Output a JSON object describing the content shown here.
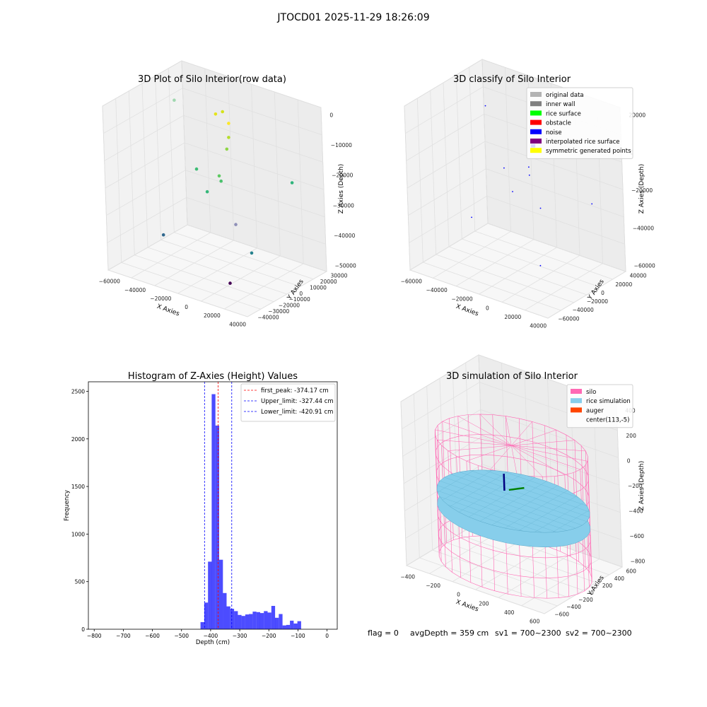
{
  "figure": {
    "suptitle": "JTOCD01 2025-11-29 18:26:09",
    "footer": {
      "flag": "flag = 0",
      "avg_depth": "avgDepth = 359 cm",
      "sv1": "sv1 = 700~2300",
      "sv2": "sv2 = 700~2300"
    }
  },
  "chart_data": [
    {
      "type": "scatter",
      "projection": "3d",
      "title": "3D Plot of Silo Interior(row data)",
      "xlabel": "X Axies",
      "ylabel": "Y Axies",
      "zlabel": "Z Axies (Depth)",
      "xticks": [
        "−60000",
        "−40000",
        "−20000",
        "0",
        "20000",
        "40000"
      ],
      "yticks": [
        "−40000",
        "−30000",
        "−20000",
        "−10000",
        "0",
        "10000",
        "20000",
        "30000"
      ],
      "zticks": [
        "−50000",
        "−40000",
        "−30000",
        "−20000",
        "−10000",
        "0"
      ],
      "xlim": [
        -65000,
        45000
      ],
      "ylim": [
        -45000,
        35000
      ],
      "zlim": [
        -55000,
        2000
      ],
      "colormap": "viridis",
      "grid": true,
      "points": [
        {
          "x": -5000,
          "y": 5000,
          "z": -5000,
          "color": "#fde725"
        },
        {
          "x": -8000,
          "y": 3000,
          "z": -1000,
          "color": "#d4e21a"
        },
        {
          "x": -12000,
          "y": 1000,
          "z": -2000,
          "color": "#e5e419"
        },
        {
          "x": -3000,
          "y": 2000,
          "z": -9000,
          "color": "#b5de2b"
        },
        {
          "x": -4000,
          "y": 1000,
          "z": -13000,
          "color": "#8ed645"
        },
        {
          "x": -60000,
          "y": 20000,
          "z": -8000,
          "color": "#a0d8b0"
        },
        {
          "x": -10000,
          "y": 0,
          "z": -23000,
          "color": "#5ec962"
        },
        {
          "x": -7000,
          "y": -2000,
          "z": -24000,
          "color": "#4ac16d"
        },
        {
          "x": -40000,
          "y": 15000,
          "z": -28000,
          "color": "#3dbc74"
        },
        {
          "x": -20000,
          "y": 0,
          "z": -30000,
          "color": "#35b779"
        },
        {
          "x": 40000,
          "y": 10000,
          "z": -20000,
          "color": "#2fb47c"
        },
        {
          "x": 10000,
          "y": -10000,
          "z": -35000,
          "color": "#8f90b8"
        },
        {
          "x": -40000,
          "y": -20000,
          "z": -44000,
          "color": "#31688e"
        },
        {
          "x": 30000,
          "y": -20000,
          "z": -40000,
          "color": "#26828e"
        },
        {
          "x": 20000,
          "y": -30000,
          "z": -50000,
          "color": "#440154"
        }
      ]
    },
    {
      "type": "scatter",
      "projection": "3d",
      "title": "3D classify of Silo Interior",
      "xlabel": "X Axies",
      "ylabel": "Y Axies",
      "zlabel": "Z Axies (Depth)",
      "xticks": [
        "−60000",
        "−40000",
        "−20000",
        "0",
        "20000",
        "40000"
      ],
      "yticks": [
        "−60000",
        "−40000",
        "−20000",
        "0",
        "20000",
        "40000"
      ],
      "zticks": [
        "−60000",
        "−40000",
        "−20000",
        "0",
        "20000"
      ],
      "zticks_partial": [
        "000"
      ],
      "xlim": [
        -65000,
        45000
      ],
      "ylim": [
        -65000,
        45000
      ],
      "zlim": [
        -70000,
        22000
      ],
      "grid": true,
      "legend_position": "top-right",
      "legend": [
        {
          "label": "original data",
          "color": "#b3b3b3"
        },
        {
          "label": "inner wall",
          "color": "#808080"
        },
        {
          "label": "rice surface",
          "color": "#00ff00"
        },
        {
          "label": "obstacle",
          "color": "#ff0000"
        },
        {
          "label": "noise",
          "color": "#0000ff"
        },
        {
          "label": "interpolated rice surface",
          "color": "#800080"
        },
        {
          "label": "symmetric generated points",
          "color": "#ffff00"
        }
      ],
      "points": [
        {
          "x": 0,
          "y": 0,
          "z": 0,
          "color": "#0000ff",
          "cluster": true
        },
        {
          "x": -2000,
          "y": 1000,
          "z": 8000,
          "color": "#0000ff"
        },
        {
          "x": -55000,
          "y": 30000,
          "z": 2000,
          "color": "#0000ff"
        },
        {
          "x": -3000,
          "y": -2000,
          "z": -12000,
          "color": "#0000ff"
        },
        {
          "x": -5000,
          "y": 2000,
          "z": -18000,
          "color": "#0000ff"
        },
        {
          "x": -30000,
          "y": 10000,
          "z": -22000,
          "color": "#0000ff"
        },
        {
          "x": -15000,
          "y": -5000,
          "z": -28000,
          "color": "#0000ff"
        },
        {
          "x": 40000,
          "y": 10000,
          "z": -25000,
          "color": "#0000ff"
        },
        {
          "x": -40000,
          "y": -20000,
          "z": -45000,
          "color": "#0000ff"
        },
        {
          "x": 20000,
          "y": -30000,
          "z": -55000,
          "color": "#0000ff"
        },
        {
          "x": 10000,
          "y": -10000,
          "z": -30000,
          "color": "#0000ff"
        }
      ]
    },
    {
      "type": "bar",
      "subtype": "histogram",
      "title": "Histogram of Z-Axies (Height) Values",
      "xlabel": "Depth (cm)",
      "ylabel": "Frequency",
      "xlim": [
        -820,
        35
      ],
      "ylim": [
        0,
        2600
      ],
      "xticks": [
        "−800",
        "−700",
        "−600",
        "−500",
        "−400",
        "−300",
        "−200",
        "−100",
        "0"
      ],
      "yticks": [
        "0",
        "500",
        "1000",
        "1500",
        "2000",
        "2500"
      ],
      "bar_color": "#0000ff",
      "bar_alpha": 0.7,
      "bin_edges": [
        -434.7,
        -421.9,
        -409.1,
        -396.3,
        -383.5,
        -370.7,
        -357.9,
        -345.1,
        -332.3,
        -319.5,
        -306.7,
        -293.9,
        -281.1,
        -268.3,
        -255.5,
        -242.7,
        -229.9,
        -217.1,
        -204.3,
        -191.5,
        -178.7,
        -165.9,
        -153.1,
        -140.3,
        -127.5,
        -114.7,
        -101.9,
        -89.1,
        -76.3,
        -63.5,
        -50.7,
        -37.9,
        -25.1,
        -12.3
      ],
      "values": [
        75,
        280,
        710,
        2470,
        2140,
        730,
        380,
        240,
        215,
        190,
        150,
        140,
        155,
        160,
        185,
        180,
        170,
        190,
        175,
        245,
        120,
        160,
        40,
        45,
        90,
        60,
        85,
        0,
        0,
        0,
        0,
        0,
        0
      ],
      "vlines": [
        {
          "label": "first_peak: -374.17 cm",
          "x": -374.17,
          "color": "#ff0000"
        },
        {
          "label": "Upper_limit: -327.44 cm",
          "x": -327.44,
          "color": "#0000ff"
        },
        {
          "label": "Lower_limit: -420.91 cm",
          "x": -420.91,
          "color": "#0000ff"
        }
      ],
      "legend_position": "top-right"
    },
    {
      "type": "surface",
      "projection": "3d",
      "title": "3D simulation of Silo Interior",
      "xlabel": "X Axies",
      "ylabel": "Y Axies",
      "zlabel": "Z Axies (Depth)",
      "xticks": [
        "−400",
        "−200",
        "0",
        "200",
        "400",
        "600"
      ],
      "yticks": [
        "−600",
        "−400",
        "−200",
        "0",
        "200",
        "400",
        "600"
      ],
      "zticks": [
        "−800",
        "−600",
        "−400",
        "−200",
        "0",
        "200",
        "400"
      ],
      "xlim": [
        -500,
        700
      ],
      "ylim": [
        -700,
        700
      ],
      "zlim": [
        -900,
        450
      ],
      "grid": true,
      "legend_position": "top-right",
      "legend": [
        {
          "label": "silo",
          "color": "#ff69b4"
        },
        {
          "label": "rice simulation",
          "color": "#87ceeb"
        },
        {
          "label": "auger",
          "color": "#ff4500"
        },
        {
          "label": "center(113,-5)",
          "color": "none"
        }
      ],
      "center": [
        113,
        -5
      ],
      "silo_radius": 600,
      "silo_z_range": [
        -900,
        100
      ],
      "rice_surface_z": -359
    }
  ]
}
